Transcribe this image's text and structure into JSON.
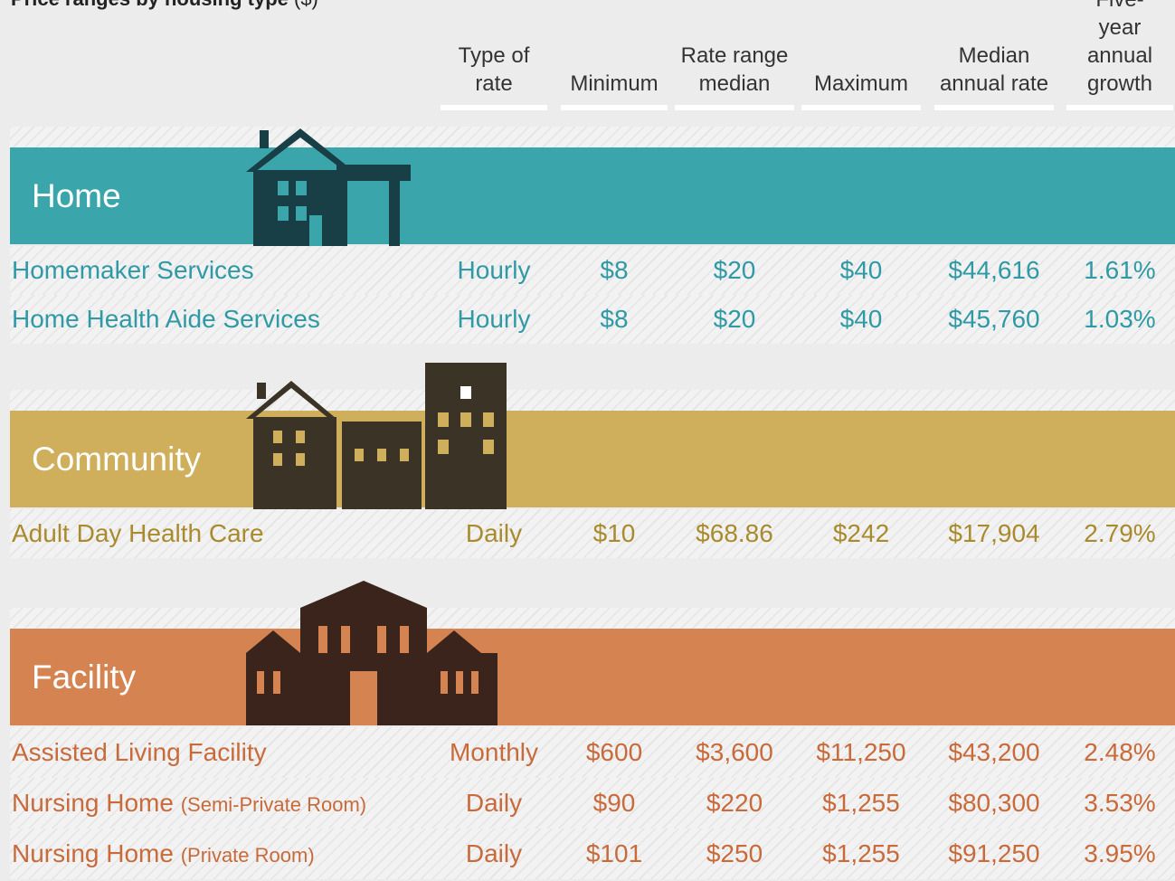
{
  "title": "Price ranges by housing type",
  "title_unit": "($)",
  "columns": [
    "Type of rate",
    "Minimum",
    "Rate range median",
    "Maximum",
    "Median annual rate",
    "Five-year annual growth"
  ],
  "sections": [
    {
      "name": "Home",
      "rows": [
        {
          "name": "Homemaker Services",
          "cells": [
            "Hourly",
            "$8",
            "$20",
            "$40",
            "$44,616",
            "1.61%"
          ]
        },
        {
          "name": "Home Health Aide Services",
          "cells": [
            "Hourly",
            "$8",
            "$20",
            "$40",
            "$45,760",
            "1.03%"
          ]
        }
      ]
    },
    {
      "name": "Community",
      "rows": [
        {
          "name": "Adult Day Health Care",
          "cells": [
            "Daily",
            "$10",
            "$68.86",
            "$242",
            "$17,904",
            "2.79%"
          ]
        }
      ]
    },
    {
      "name": "Facility",
      "rows": [
        {
          "name": "Assisted Living Facility",
          "cells": [
            "Monthly",
            "$600",
            "$3,600",
            "$11,250",
            "$43,200",
            "2.48%"
          ]
        },
        {
          "name": "Nursing Home",
          "note": "(Semi-Private Room)",
          "cells": [
            "Daily",
            "$90",
            "$220",
            "$1,255",
            "$80,300",
            "3.53%"
          ]
        },
        {
          "name": "Nursing Home",
          "note": "(Private Room)",
          "cells": [
            "Daily",
            "$101",
            "$250",
            "$1,255",
            "$91,250",
            "3.95%"
          ]
        }
      ]
    }
  ]
}
